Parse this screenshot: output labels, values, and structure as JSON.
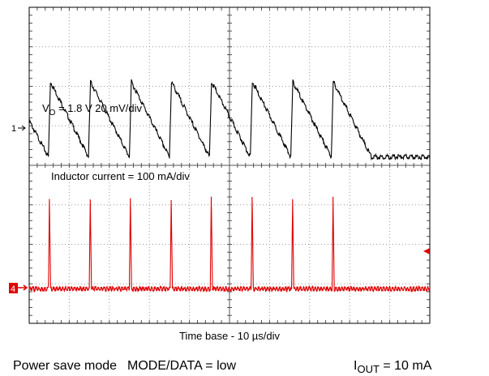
{
  "chart_data": {
    "type": "line",
    "title": "",
    "xlabel": "Time base - 10 µs/div",
    "x_range_us": [
      0,
      100
    ],
    "grid": true,
    "grid_divisions": {
      "x": 10,
      "y": 8
    },
    "channels": [
      {
        "id": "1",
        "marker": "1",
        "label_main": "V",
        "label_sub": "O",
        "label_rest": " = 1.8 V 20 mV/div",
        "scale_mV_per_div": 20,
        "color": "#000000",
        "waveform": "sawtooth",
        "jump_times_us": [
          4.8,
          14.8,
          25.0,
          35.0,
          45.0,
          55.2,
          65.3,
          75.4
        ],
        "low_level_mV": -14,
        "high_level_mV": 24
      },
      {
        "id": "4",
        "marker": "4",
        "label": "Inductor current = 100 mA/div",
        "scale_mA_per_div": 100,
        "color": "#e00000",
        "waveform": "pulse",
        "pulse_times_us": [
          4.8,
          15.0,
          25.0,
          35.2,
          45.2,
          55.4,
          65.5,
          75.6
        ],
        "pulse_peak_mA": 230,
        "baseline_mA": 0
      }
    ]
  },
  "footer": {
    "mode": "Power save mode",
    "mode_data": "MODE/DATA = low",
    "iout_main": "I",
    "iout_sub": "OUT",
    "iout_rest": " = 10 mA"
  }
}
